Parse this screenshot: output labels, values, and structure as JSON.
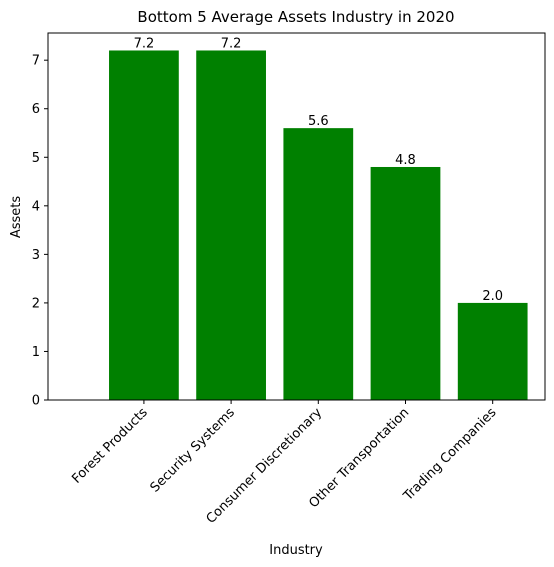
{
  "chart_data": {
    "type": "bar",
    "title": "Bottom 5 Average Assets Industry in 2020",
    "xlabel": "Industry",
    "ylabel": "Assets",
    "categories": [
      "Forest Products",
      "Security Systems",
      "Consumer Discretionary",
      "Other Transportation",
      "Trading Companies"
    ],
    "values": [
      7.2,
      7.2,
      5.6,
      4.8,
      2.0
    ],
    "data_labels": [
      "7.2",
      "7.2",
      "5.6",
      "4.8",
      "2.0"
    ],
    "ylim": [
      0,
      7.56
    ],
    "yticks": [
      0,
      1,
      2,
      3,
      4,
      5,
      6,
      7
    ],
    "ytick_labels": [
      "0",
      "1",
      "2",
      "3",
      "4",
      "5",
      "6",
      "7"
    ],
    "bar_color": "#008000",
    "grid": false,
    "legend": "none"
  }
}
